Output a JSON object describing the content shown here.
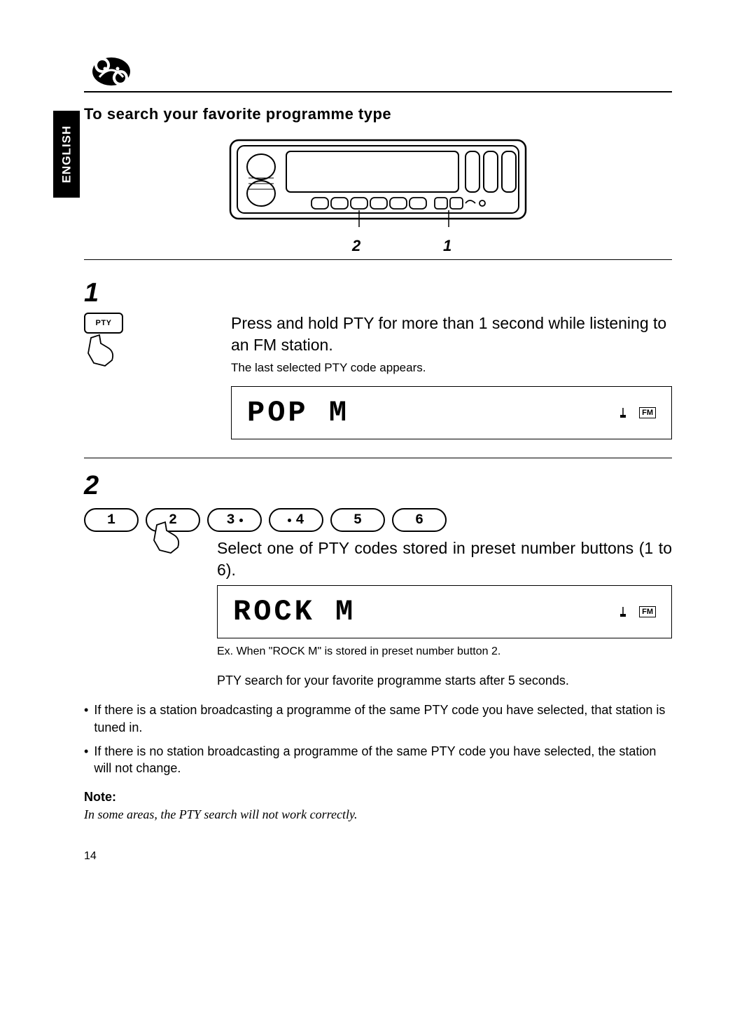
{
  "language_tab": "ENGLISH",
  "section_title": "To search your favorite programme type",
  "radio_callouts": {
    "left_num": "2",
    "right_num": "1"
  },
  "step1": {
    "number": "1",
    "button_label": "PTY",
    "main": "Press and hold PTY for more than 1 second while listening to an FM station.",
    "sub": "The last selected PTY code appears.",
    "lcd_text": "POP M",
    "lcd_badge": "FM"
  },
  "step2": {
    "number": "2",
    "preset_labels": [
      "1",
      "2",
      "3",
      "4",
      "5",
      "6"
    ],
    "preset_dots": [
      false,
      false,
      true,
      true,
      false,
      false
    ],
    "preset_dot_side": [
      "",
      "",
      "right",
      "left",
      "",
      ""
    ],
    "main": "Select one of PTY codes stored in preset number buttons (1 to 6).",
    "lcd_text": "ROCK M",
    "lcd_badge": "FM",
    "example": "Ex. When \"ROCK M\" is stored in preset number button 2.",
    "followup": "PTY search for your favorite programme starts after 5 seconds."
  },
  "bullets": [
    "If there is a station broadcasting a programme of the same PTY code you have selected, that station is tuned in.",
    "If there is no station broadcasting a programme of the same PTY code you have selected, the station will not change."
  ],
  "note_head": "Note:",
  "note_body": "In some areas, the PTY search will not work correctly.",
  "page_number": "14",
  "colors": {
    "text": "#000000",
    "bg": "#ffffff",
    "tab_bg": "#000000",
    "tab_fg": "#ffffff"
  }
}
